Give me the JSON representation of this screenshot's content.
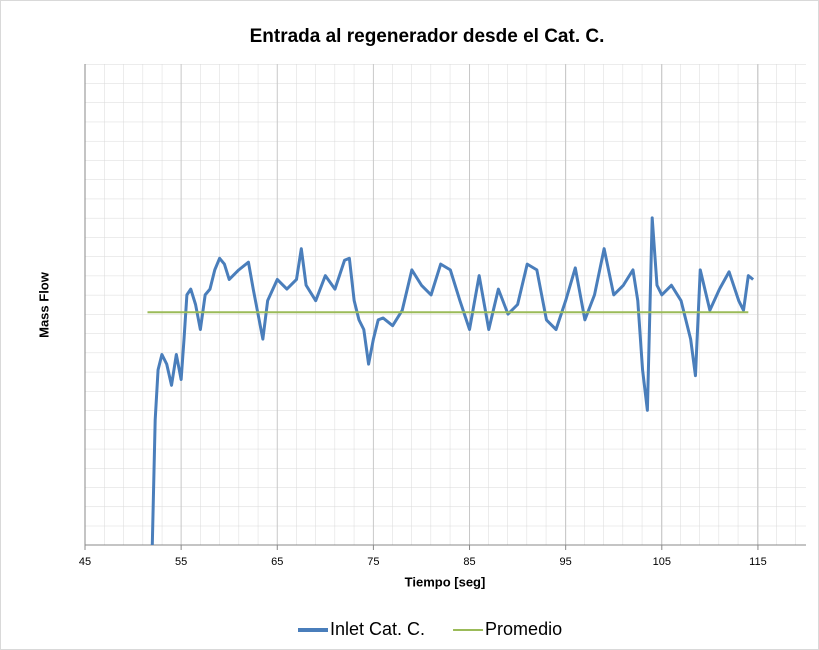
{
  "chart_data": {
    "type": "line",
    "title": "Entrada al regenerador desde el Cat. C.",
    "x_label": "Tiempo [seg]",
    "y_label": "Mass Flow",
    "xlim": [
      45,
      120
    ],
    "xticks": [
      45,
      55,
      65,
      75,
      85,
      95,
      105,
      115
    ],
    "ylim": [
      0,
      25
    ],
    "grid": true,
    "legend": "bottom",
    "series": [
      {
        "name": "Inlet Cat. C.",
        "color": "#4a7ebb",
        "x": [
          52.0,
          52.3,
          52.6,
          53,
          53.5,
          54,
          54.5,
          55,
          55.3,
          55.6,
          56,
          56.5,
          57,
          57.5,
          58,
          58.5,
          59,
          59.5,
          60,
          61,
          62,
          62.5,
          63,
          63.5,
          64,
          65,
          66,
          67,
          67.5,
          68,
          69,
          70,
          71,
          72,
          72.5,
          73,
          73.5,
          74,
          74.5,
          75,
          75.5,
          76,
          77,
          78,
          79,
          80,
          81,
          82,
          83,
          84,
          85,
          86,
          87,
          88,
          89,
          90,
          91,
          92,
          93,
          94,
          95,
          96,
          97,
          98,
          99,
          100,
          101,
          102,
          102.5,
          103,
          103.5,
          104,
          104.5,
          105,
          106,
          107,
          108,
          108.5,
          109,
          110,
          111,
          112,
          113,
          113.5,
          114,
          114.5
        ],
        "values": [
          0,
          6.5,
          9.1,
          9.9,
          9.4,
          8.3,
          9.9,
          8.6,
          10.7,
          13.0,
          13.3,
          12.5,
          11.2,
          13.0,
          13.3,
          14.3,
          14.9,
          14.6,
          13.8,
          14.3,
          14.7,
          13.3,
          12.0,
          10.7,
          12.7,
          13.8,
          13.3,
          13.8,
          15.4,
          13.5,
          12.7,
          14.0,
          13.3,
          14.8,
          14.9,
          12.7,
          11.7,
          11.2,
          9.4,
          10.7,
          11.7,
          11.8,
          11.4,
          12.2,
          14.3,
          13.5,
          13.0,
          14.6,
          14.3,
          12.7,
          11.2,
          14.0,
          11.2,
          13.3,
          12.0,
          12.5,
          14.6,
          14.3,
          11.7,
          11.2,
          12.7,
          14.4,
          11.7,
          13.0,
          15.4,
          13.0,
          13.5,
          14.3,
          12.7,
          9.1,
          7.0,
          17.0,
          13.5,
          13.0,
          13.5,
          12.7,
          10.7,
          8.8,
          14.3,
          12.2,
          13.3,
          14.2,
          12.7,
          12.2,
          14.0,
          13.8
        ]
      },
      {
        "name": "Promedio",
        "color": "#9bbb59",
        "x": [
          51.5,
          114
        ],
        "values": [
          12.1,
          12.1
        ]
      }
    ]
  }
}
